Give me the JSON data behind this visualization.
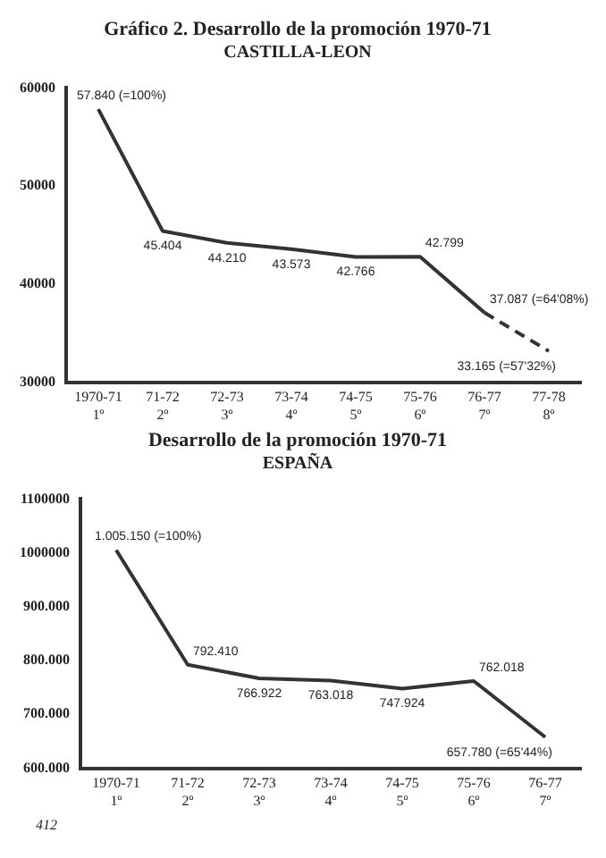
{
  "chart_data": [
    {
      "type": "line",
      "title": "Gráfico 2. Desarrollo de la promoción 1970-71",
      "subtitle": "CASTILLA-LEON",
      "categories": [
        "1970-71\n1º",
        "71-72\n2º",
        "72-73\n3º",
        "73-74\n4º",
        "74-75\n5º",
        "75-76\n6º",
        "76-77\n7º",
        "77-78\n8º"
      ],
      "series": [
        {
          "color": "#333333",
          "line_style": "solid",
          "values": [
            57840,
            45404,
            44210,
            43573,
            42766,
            42799,
            37087,
            null
          ],
          "value_labels": [
            "57.840 (=100%)",
            "45.404",
            "44.210",
            "43.573",
            "42.766",
            "42.799",
            "37.087 (=64'08%)",
            null
          ]
        },
        {
          "color": "#333333",
          "line_style": "dashed",
          "values": [
            null,
            null,
            null,
            null,
            null,
            null,
            37087,
            33165
          ],
          "value_labels": [
            null,
            null,
            null,
            null,
            null,
            null,
            null,
            "33.165 (=57'32%)"
          ]
        }
      ],
      "ylim": [
        30000,
        60000
      ],
      "yticks": [
        30000,
        40000,
        50000,
        60000
      ],
      "grid": false,
      "legend": false,
      "marker": "none"
    },
    {
      "type": "line",
      "title": "Desarrollo de la promoción 1970-71",
      "subtitle": "ESPAÑA",
      "categories": [
        "1970-71\n1º",
        "71-72\n2º",
        "72-73\n3º",
        "73-74\n4º",
        "74-75\n5º",
        "75-76\n6º",
        "76-77\n7º"
      ],
      "series": [
        {
          "color": "#333333",
          "line_style": "solid",
          "values": [
            1005150,
            792410,
            766922,
            763018,
            747924,
            762018,
            657780
          ],
          "value_labels": [
            "1.005.150 (=100%)",
            "792.410",
            "766.922",
            "763.018",
            "747.924",
            "762.018",
            "657.780 (=65'44%)"
          ]
        }
      ],
      "ylim": [
        600000,
        1100000
      ],
      "yticks": [
        {
          "value": 600000,
          "label": "600.000"
        },
        {
          "value": 700000,
          "label": "700.000"
        },
        {
          "value": 800000,
          "label": "800.000"
        },
        {
          "value": 900000,
          "label": "900.000"
        },
        {
          "value": 1000000,
          "label": "1000000"
        },
        {
          "value": 1100000,
          "label": "1100000"
        }
      ],
      "grid": false,
      "legend": false,
      "marker": "none",
      "annotations": [
        "412"
      ]
    }
  ]
}
